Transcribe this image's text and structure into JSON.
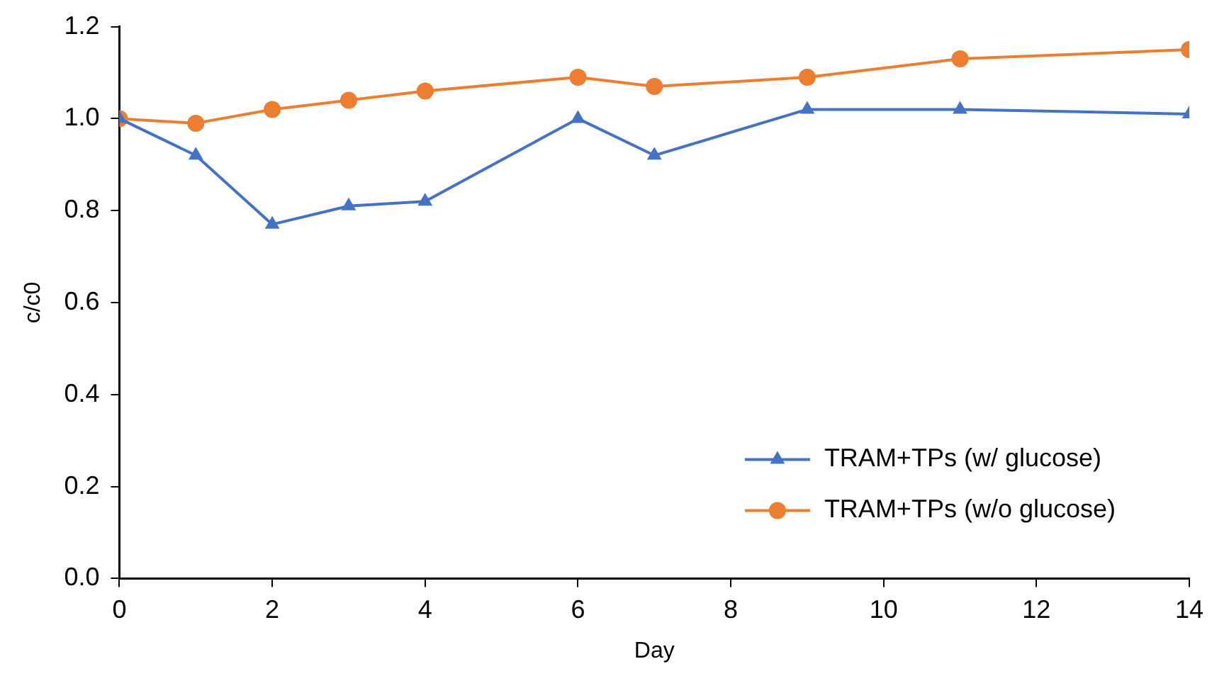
{
  "chart_data": {
    "type": "line",
    "xlabel": "Day",
    "ylabel": "c/c0",
    "x": [
      0,
      1,
      2,
      3,
      4,
      6,
      7,
      9,
      11,
      14
    ],
    "series": [
      {
        "name": "TRAM+TPs (w/ glucose)",
        "color": "#4472c4",
        "marker": "triangle",
        "values": [
          1.0,
          0.92,
          0.77,
          0.81,
          0.82,
          1.0,
          0.92,
          1.02,
          1.02,
          1.01
        ]
      },
      {
        "name": "TRAM+TPs (w/o glucose)",
        "color": "#ed7d31",
        "marker": "circle",
        "values": [
          1.0,
          0.99,
          1.02,
          1.04,
          1.06,
          1.09,
          1.07,
          1.09,
          1.13,
          1.15
        ]
      }
    ],
    "xlim": [
      0,
      14
    ],
    "xticks": [
      0,
      2,
      4,
      6,
      8,
      10,
      12,
      14
    ],
    "ylim": [
      0,
      1.2
    ],
    "yticks": [
      {
        "value": 0,
        "label": "0.0"
      },
      0.2,
      0.4,
      0.6,
      0.8,
      {
        "value": 1,
        "label": "1.0"
      },
      1.2
    ],
    "grid": false,
    "legend": "bottom right"
  }
}
